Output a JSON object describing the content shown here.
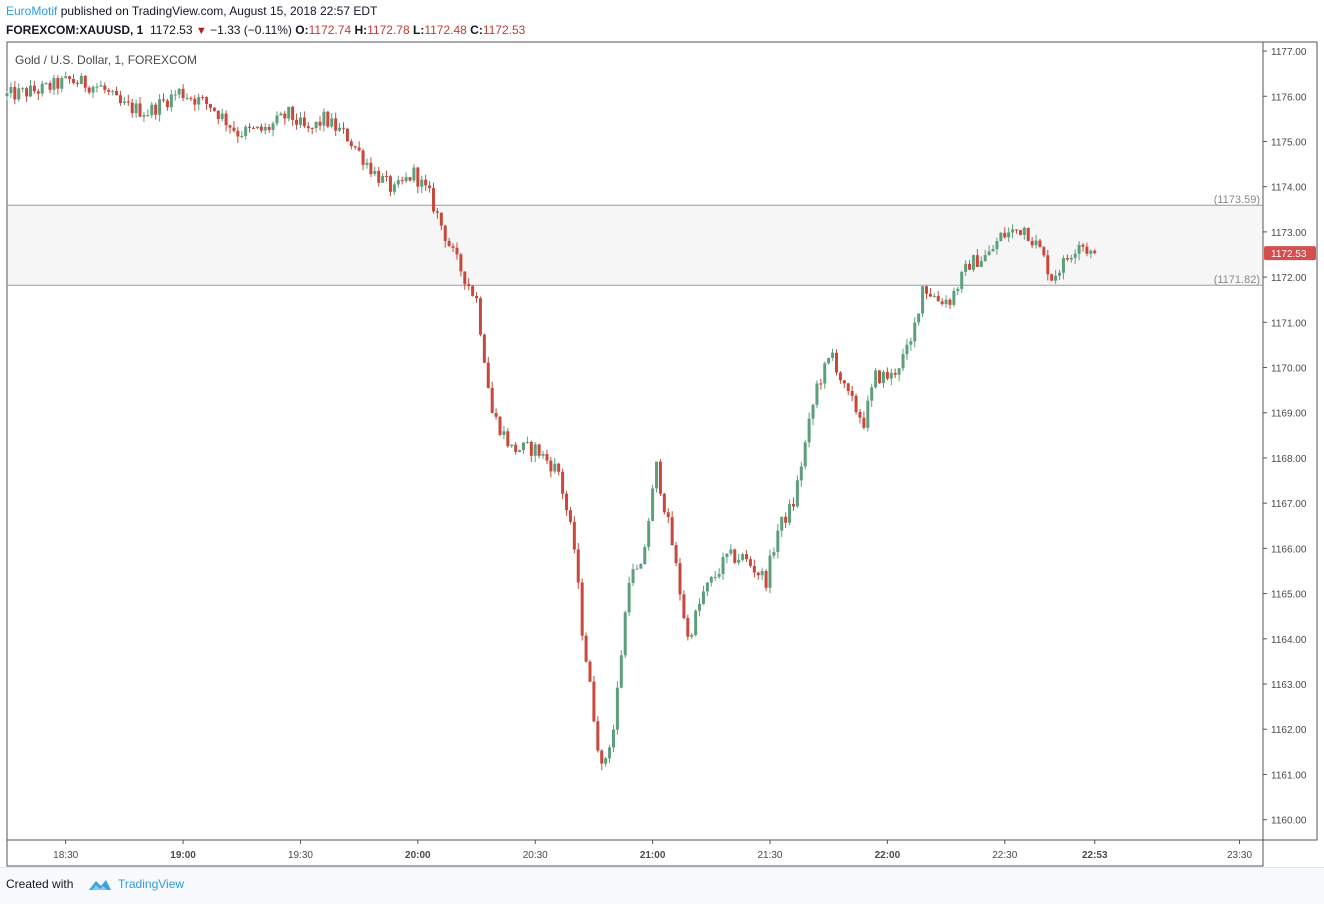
{
  "header": {
    "author": "EuroMotif",
    "published_text": "published on TradingView.com, August 15, 2018 22:57 EDT",
    "symbol": "FOREXCOM:XAUUSD, 1",
    "last": "1172.53",
    "change": "−1.33 (−0.11%)",
    "o_label": "O:",
    "o_value": "1172.74",
    "h_label": "H:",
    "h_value": "1172.78",
    "l_label": "L:",
    "l_value": "1172.48",
    "c_label": "C:",
    "c_value": "1172.53"
  },
  "footer": {
    "created_with": "Created with",
    "brand": "TradingView"
  },
  "colors": {
    "up": "#5d9f7c",
    "down": "#c8493c",
    "grid": "#e8eaef",
    "border": "#555555",
    "band_fill": "#f6f6f6",
    "band_line": "#9c9c9c",
    "price_tag": "#d44e4e"
  },
  "chart_data": {
    "type": "candlestick",
    "title": "Gold / U.S. Dollar, 1, FOREXCOM",
    "y_ticks": [
      "1160.00",
      "1161.00",
      "1162.00",
      "1163.00",
      "1164.00",
      "1165.00",
      "1166.00",
      "1167.00",
      "1168.00",
      "1169.00",
      "1170.00",
      "1171.00",
      "1172.00",
      "1173.00",
      "1174.00",
      "1175.00",
      "1176.00",
      "1177.00"
    ],
    "ylim": [
      1159.55,
      1177.2
    ],
    "x_ticks": [
      {
        "time": "18:30",
        "bold": false
      },
      {
        "time": "19:00",
        "bold": true
      },
      {
        "time": "19:30",
        "bold": false
      },
      {
        "time": "20:00",
        "bold": true
      },
      {
        "time": "20:30",
        "bold": false
      },
      {
        "time": "21:00",
        "bold": true
      },
      {
        "time": "21:30",
        "bold": false
      },
      {
        "time": "22:00",
        "bold": true
      },
      {
        "time": "22:30",
        "bold": false
      },
      {
        "time": "22:53",
        "bold": true
      },
      {
        "time": "23:30",
        "bold": false
      }
    ],
    "xlim_minutes": [
      "18:15",
      "23:36"
    ],
    "band": {
      "upper": 1173.59,
      "lower": 1171.82,
      "upper_label": "(1173.59)",
      "lower_label": "(1171.82)"
    },
    "last_price": {
      "value": 1172.53,
      "label": "1172.53"
    },
    "grid": false,
    "keypoints": [
      [
        "18:15",
        1176.0
      ],
      [
        "18:25",
        1176.15
      ],
      [
        "18:32",
        1176.35
      ],
      [
        "18:40",
        1176.2
      ],
      [
        "18:45",
        1175.8
      ],
      [
        "18:52",
        1175.65
      ],
      [
        "19:00",
        1176.1
      ],
      [
        "19:08",
        1175.8
      ],
      [
        "19:15",
        1175.2
      ],
      [
        "19:22",
        1175.25
      ],
      [
        "19:28",
        1175.6
      ],
      [
        "19:33",
        1175.2
      ],
      [
        "19:37",
        1175.5
      ],
      [
        "19:43",
        1175.1
      ],
      [
        "19:50",
        1174.3
      ],
      [
        "19:55",
        1173.9
      ],
      [
        "20:00",
        1174.3
      ],
      [
        "20:04",
        1173.8
      ],
      [
        "20:10",
        1172.5
      ],
      [
        "20:16",
        1171.5
      ],
      [
        "20:20",
        1169.0
      ],
      [
        "20:25",
        1168.2
      ],
      [
        "20:31",
        1168.2
      ],
      [
        "20:37",
        1167.7
      ],
      [
        "20:41",
        1166.0
      ],
      [
        "20:43",
        1164.2
      ],
      [
        "20:46",
        1162.3
      ],
      [
        "20:48",
        1161.1
      ],
      [
        "20:51",
        1162.0
      ],
      [
        "20:55",
        1165.4
      ],
      [
        "20:58",
        1165.5
      ],
      [
        "21:02",
        1167.8
      ],
      [
        "21:06",
        1166.1
      ],
      [
        "21:10",
        1164.0
      ],
      [
        "21:14",
        1165.0
      ],
      [
        "21:20",
        1165.8
      ],
      [
        "21:24",
        1165.8
      ],
      [
        "21:30",
        1165.3
      ],
      [
        "21:33",
        1166.4
      ],
      [
        "21:37",
        1167.0
      ],
      [
        "21:43",
        1169.6
      ],
      [
        "21:47",
        1170.3
      ],
      [
        "21:50",
        1169.5
      ],
      [
        "21:55",
        1168.8
      ],
      [
        "21:58",
        1169.8
      ],
      [
        "22:02",
        1169.8
      ],
      [
        "22:07",
        1170.5
      ],
      [
        "22:10",
        1171.8
      ],
      [
        "22:14",
        1171.5
      ],
      [
        "22:17",
        1171.5
      ],
      [
        "22:22",
        1172.3
      ],
      [
        "22:27",
        1172.5
      ],
      [
        "22:30",
        1172.9
      ],
      [
        "22:36",
        1173.1
      ],
      [
        "22:40",
        1172.6
      ],
      [
        "22:43",
        1172.0
      ],
      [
        "22:46",
        1172.3
      ],
      [
        "22:50",
        1172.8
      ],
      [
        "22:53",
        1172.53
      ]
    ]
  }
}
